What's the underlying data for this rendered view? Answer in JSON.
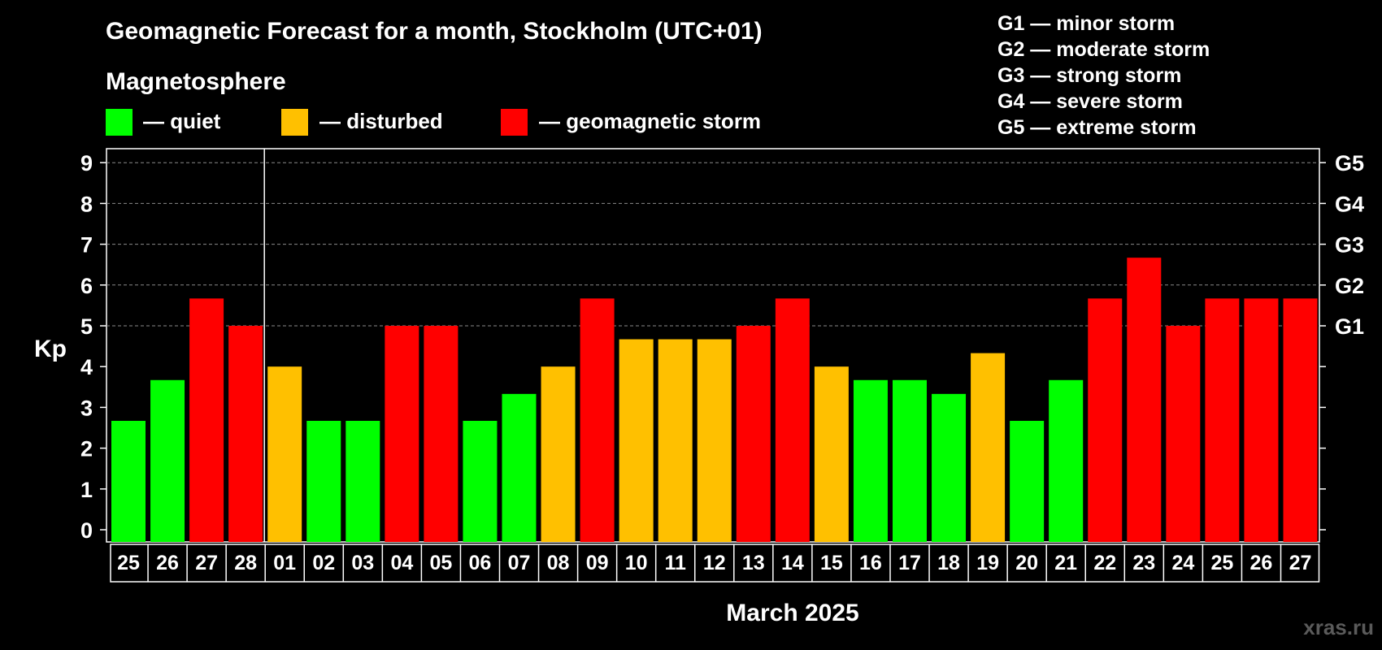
{
  "chart_data": {
    "type": "bar",
    "title": "Geomagnetic Forecast for a month, Stockholm (UTC+01)",
    "legend_title": "Magnetosphere",
    "legend": [
      {
        "key": "quiet",
        "label": "— quiet",
        "color": "#00ff00"
      },
      {
        "key": "disturbed",
        "label": "— disturbed",
        "color": "#ffc000"
      },
      {
        "key": "storm",
        "label": "— geomagnetic storm",
        "color": "#ff0000"
      }
    ],
    "storm_scale": [
      "G1 — minor storm",
      "G2 — moderate storm",
      "G3 — strong storm",
      "G4 — severe storm",
      "G5 — extreme storm"
    ],
    "ylabel": "Kp",
    "xlabel": "March 2025",
    "ylim": [
      0,
      9
    ],
    "yticks": [
      "0",
      "1",
      "2",
      "3",
      "4",
      "5",
      "6",
      "7",
      "8",
      "9"
    ],
    "right_ticks": [
      {
        "value": 5,
        "label": "G1"
      },
      {
        "value": 6,
        "label": "G2"
      },
      {
        "value": 7,
        "label": "G3"
      },
      {
        "value": 8,
        "label": "G4"
      },
      {
        "value": 9,
        "label": "G5"
      }
    ],
    "month_divider_after_index": 3,
    "categories": [
      "25",
      "26",
      "27",
      "28",
      "01",
      "02",
      "03",
      "04",
      "05",
      "06",
      "07",
      "08",
      "09",
      "10",
      "11",
      "12",
      "13",
      "14",
      "15",
      "16",
      "17",
      "18",
      "19",
      "20",
      "21",
      "22",
      "23",
      "24",
      "25",
      "26",
      "27"
    ],
    "values": [
      2.67,
      3.67,
      5.67,
      5.0,
      4.0,
      2.67,
      2.67,
      5.0,
      5.0,
      2.67,
      3.33,
      4.0,
      5.67,
      4.67,
      4.67,
      4.67,
      5.0,
      5.67,
      4.0,
      3.67,
      3.67,
      3.33,
      4.33,
      2.67,
      3.67,
      5.67,
      6.67,
      5.0,
      5.67,
      5.67,
      5.67
    ],
    "levels": [
      "quiet",
      "quiet",
      "storm",
      "storm",
      "disturbed",
      "quiet",
      "quiet",
      "storm",
      "storm",
      "quiet",
      "quiet",
      "disturbed",
      "storm",
      "disturbed",
      "disturbed",
      "disturbed",
      "storm",
      "storm",
      "disturbed",
      "quiet",
      "quiet",
      "quiet",
      "disturbed",
      "quiet",
      "quiet",
      "storm",
      "storm",
      "storm",
      "storm",
      "storm",
      "storm"
    ]
  },
  "watermark": "xras.ru"
}
